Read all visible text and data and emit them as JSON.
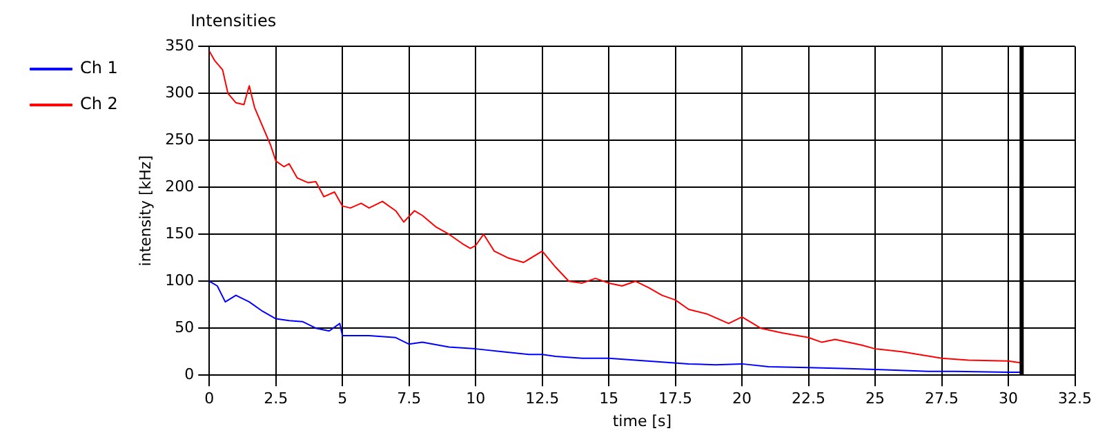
{
  "chart_data": {
    "type": "line",
    "title": "Intensities",
    "xlabel": "time [s]",
    "ylabel": "intensity [kHz]",
    "xlim": [
      0,
      32.5
    ],
    "xticks": [
      0,
      2.5,
      5,
      7.5,
      10,
      12.5,
      15,
      17.5,
      20,
      22.5,
      25,
      27.5,
      30,
      32.5
    ],
    "ylim": [
      0,
      350
    ],
    "yticks": [
      0,
      50,
      100,
      150,
      200,
      250,
      300,
      350
    ],
    "grid": true,
    "legend": "top left",
    "marker": "none",
    "line_style": "solid",
    "ref_lines": [
      {
        "axis": "x",
        "value": 30.5,
        "color": "#000000"
      }
    ],
    "series": [
      {
        "name": "Ch 1",
        "color": "#0000ff",
        "x": [
          0,
          0.3,
          0.6,
          1,
          1.5,
          2,
          2.5,
          3,
          3.5,
          4,
          4.5,
          4.9,
          5,
          6,
          7,
          7.5,
          8,
          9,
          10,
          11,
          12,
          12.5,
          13,
          14,
          15,
          16,
          17,
          18,
          19,
          20,
          21,
          22.5,
          24,
          25,
          27,
          28,
          30,
          30.5
        ],
        "values": [
          100,
          95,
          78,
          85,
          78,
          68,
          60,
          58,
          57,
          50,
          47,
          55,
          42,
          42,
          40,
          33,
          35,
          30,
          28,
          25,
          22,
          22,
          20,
          18,
          18,
          16,
          14,
          12,
          11,
          12,
          9,
          8,
          7,
          6,
          4,
          4,
          3,
          3
        ]
      },
      {
        "name": "Ch 2",
        "color": "#ff0000",
        "x": [
          0,
          0.2,
          0.5,
          0.7,
          1,
          1.3,
          1.5,
          1.7,
          2,
          2.3,
          2.5,
          2.8,
          3,
          3.3,
          3.7,
          4,
          4.3,
          4.7,
          5,
          5.3,
          5.7,
          6,
          6.5,
          7,
          7.3,
          7.7,
          8,
          8.5,
          9,
          9.5,
          9.8,
          10,
          10.3,
          10.7,
          11.2,
          11.8,
          12.5,
          13,
          13.5,
          14,
          14.5,
          15,
          15.5,
          16,
          16.5,
          17,
          17.5,
          18,
          18.7,
          19.5,
          20,
          20.7,
          21.5,
          22.5,
          23,
          23.5,
          24.5,
          25,
          26,
          27.5,
          28.5,
          30,
          30.5
        ],
        "values": [
          345,
          335,
          325,
          300,
          290,
          288,
          308,
          285,
          265,
          245,
          228,
          222,
          225,
          210,
          205,
          206,
          190,
          195,
          180,
          178,
          183,
          178,
          185,
          175,
          163,
          175,
          170,
          158,
          150,
          140,
          135,
          138,
          150,
          132,
          125,
          120,
          132,
          115,
          100,
          98,
          103,
          98,
          95,
          100,
          93,
          85,
          80,
          70,
          65,
          55,
          62,
          50,
          45,
          40,
          35,
          38,
          32,
          28,
          25,
          18,
          16,
          15,
          13
        ]
      }
    ]
  }
}
